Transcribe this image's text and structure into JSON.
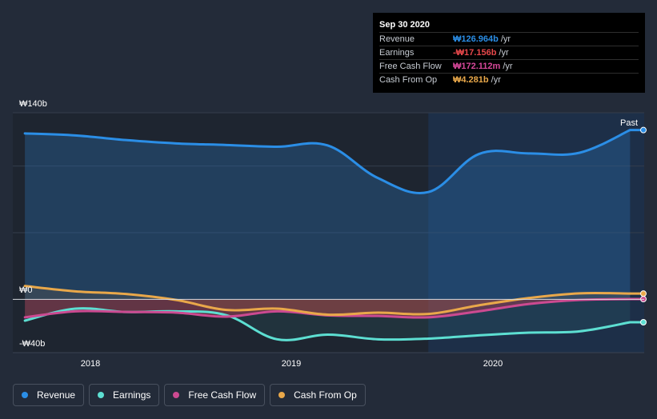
{
  "tooltip": {
    "date": "Sep 30 2020",
    "rows": [
      {
        "label": "Revenue",
        "value": "₩126.964b",
        "unit": "/yr",
        "color": "#2b8ee6"
      },
      {
        "label": "Earnings",
        "value": "-₩17.156b",
        "unit": "/yr",
        "color": "#e8484b"
      },
      {
        "label": "Free Cash Flow",
        "value": "₩172.112m",
        "unit": "/yr",
        "color": "#d8489a"
      },
      {
        "label": "Cash From Op",
        "value": "₩4.281b",
        "unit": "/yr",
        "color": "#e9a84a"
      }
    ]
  },
  "legend": [
    {
      "label": "Revenue",
      "color": "#2b8ee6"
    },
    {
      "label": "Earnings",
      "color": "#5ddfd2"
    },
    {
      "label": "Free Cash Flow",
      "color": "#cc4a91"
    },
    {
      "label": "Cash From Op",
      "color": "#e9a84a"
    }
  ],
  "chart_data": {
    "type": "line",
    "title": "",
    "xlabel": "",
    "ylabel": "",
    "ylim": [
      -40,
      140
    ],
    "xlim": [
      2017.69,
      2020.82
    ],
    "y_tick_labels": [
      "₩140b",
      "₩0",
      "-₩40b"
    ],
    "x_tick_labels": [
      "2018",
      "2019",
      "2020"
    ],
    "past_label": "Past",
    "past_start": 2019.75,
    "series": [
      {
        "name": "Revenue",
        "color": "#2b8ee6",
        "x": [
          2017.75,
          2018.0,
          2018.25,
          2018.5,
          2018.75,
          2019.0,
          2019.25,
          2019.5,
          2019.75,
          2020.0,
          2020.25,
          2020.5,
          2020.75
        ],
        "values": [
          124.5,
          123.0,
          119.5,
          117.0,
          115.8,
          114.5,
          115.5,
          91.0,
          80.5,
          109.0,
          109.5,
          110.0,
          127.0
        ]
      },
      {
        "name": "Earnings",
        "color": "#5ddfd2",
        "x": [
          2017.75,
          2018.0,
          2018.25,
          2018.5,
          2018.75,
          2019.0,
          2019.25,
          2019.5,
          2019.75,
          2020.0,
          2020.25,
          2020.5,
          2020.75
        ],
        "values": [
          -16,
          -7,
          -9.5,
          -9,
          -12,
          -30,
          -26.5,
          -30,
          -29.5,
          -27,
          -25,
          -24,
          -17.2
        ]
      },
      {
        "name": "Free Cash Flow",
        "color": "#cc4a91",
        "x": [
          2017.75,
          2018.0,
          2018.25,
          2018.5,
          2018.75,
          2019.0,
          2019.25,
          2019.5,
          2019.75,
          2020.0,
          2020.25,
          2020.5,
          2020.75
        ],
        "values": [
          -13.5,
          -9,
          -9.5,
          -10,
          -13,
          -9,
          -12,
          -12.5,
          -13.5,
          -9,
          -3.5,
          -0.5,
          0.17
        ]
      },
      {
        "name": "Cash From Op",
        "color": "#e9a84a",
        "x": [
          2017.75,
          2018.0,
          2018.25,
          2018.5,
          2018.75,
          2019.0,
          2019.25,
          2019.5,
          2019.75,
          2020.0,
          2020.25,
          2020.5,
          2020.75
        ],
        "values": [
          10,
          6,
          4,
          -0.5,
          -8,
          -7,
          -11.5,
          -10,
          -11,
          -4.5,
          1,
          4.5,
          4.3
        ]
      }
    ]
  }
}
